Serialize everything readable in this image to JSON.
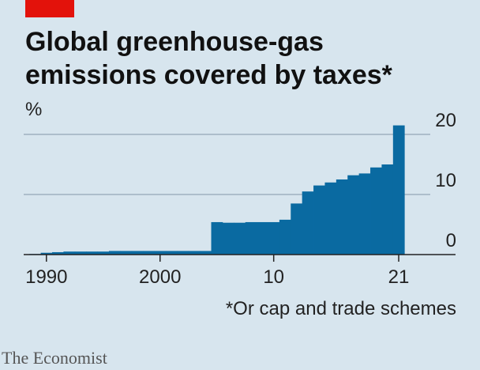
{
  "chart_data": {
    "type": "bar",
    "title_lines": [
      "Global greenhouse-gas",
      "emissions covered by taxes*"
    ],
    "y_label": "%",
    "x": [
      1989,
      1990,
      1991,
      1992,
      1993,
      1994,
      1995,
      1996,
      1997,
      1998,
      1999,
      2000,
      2001,
      2002,
      2003,
      2004,
      2005,
      2006,
      2007,
      2008,
      2009,
      2010,
      2011,
      2012,
      2013,
      2014,
      2015,
      2016,
      2017,
      2018,
      2019,
      2020,
      2021
    ],
    "values": [
      0.1,
      0.3,
      0.4,
      0.5,
      0.5,
      0.5,
      0.5,
      0.6,
      0.6,
      0.6,
      0.6,
      0.6,
      0.6,
      0.6,
      0.6,
      0.6,
      5.4,
      5.3,
      5.3,
      5.4,
      5.4,
      5.4,
      5.8,
      8.5,
      10.5,
      11.5,
      12,
      12.5,
      13.2,
      13.5,
      14.5,
      15,
      21.5
    ],
    "color": "#0a6aa1",
    "xlim": [
      1988,
      2026
    ],
    "xticks": [
      1990,
      2000,
      {
        "value": 2010,
        "label": "10"
      },
      {
        "value": 2021,
        "label": "21"
      }
    ],
    "ylim": [
      0,
      20
    ],
    "yticks": [
      0,
      10,
      20
    ],
    "grid": true,
    "footnote": "*Or cap and trade schemes",
    "source": "The Economist"
  }
}
